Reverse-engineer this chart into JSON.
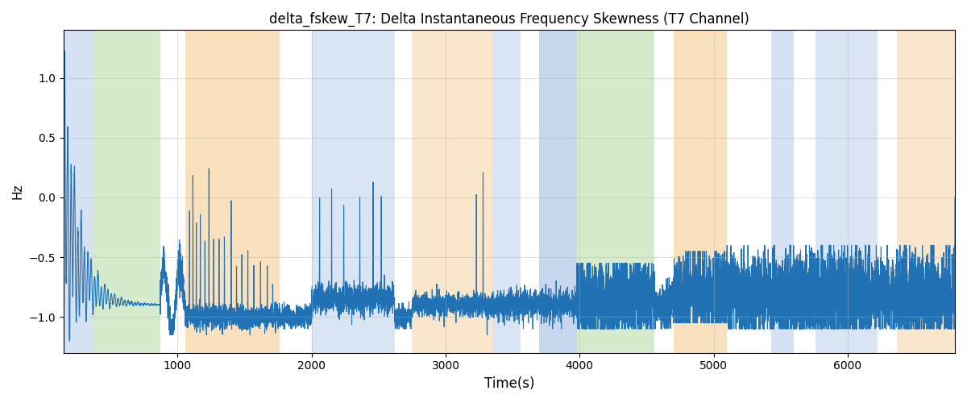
{
  "title": "delta_fskew_T7: Delta Instantaneous Frequency Skewness (T7 Channel)",
  "xlabel": "Time(s)",
  "ylabel": "Hz",
  "xlim": [
    150,
    6800
  ],
  "ylim": [
    -1.3,
    1.4
  ],
  "yticks": [
    -1.0,
    -0.5,
    0.0,
    0.5,
    1.0
  ],
  "line_color": "#2171b5",
  "line_width": 0.8,
  "bg_bands": [
    {
      "xmin": 150,
      "xmax": 370,
      "color": "#aec6e8",
      "alpha": 0.5
    },
    {
      "xmin": 370,
      "xmax": 870,
      "color": "#b5d9a3",
      "alpha": 0.55
    },
    {
      "xmin": 870,
      "xmax": 1060,
      "color": "#ffffff",
      "alpha": 0.0
    },
    {
      "xmin": 1060,
      "xmax": 1760,
      "color": "#f5c98a",
      "alpha": 0.55
    },
    {
      "xmin": 1760,
      "xmax": 2000,
      "color": "#ffffff",
      "alpha": 0.0
    },
    {
      "xmin": 2000,
      "xmax": 2620,
      "color": "#aec6e8",
      "alpha": 0.45
    },
    {
      "xmin": 2620,
      "xmax": 2750,
      "color": "#ffffff",
      "alpha": 0.0
    },
    {
      "xmin": 2750,
      "xmax": 3350,
      "color": "#f5c98a",
      "alpha": 0.45
    },
    {
      "xmin": 3350,
      "xmax": 3560,
      "color": "#aec6e8",
      "alpha": 0.45
    },
    {
      "xmin": 3560,
      "xmax": 3700,
      "color": "#ffffff",
      "alpha": 0.0
    },
    {
      "xmin": 3700,
      "xmax": 3980,
      "color": "#aec6e8",
      "alpha": 0.7
    },
    {
      "xmin": 3980,
      "xmax": 4560,
      "color": "#b5d9a3",
      "alpha": 0.55
    },
    {
      "xmin": 4560,
      "xmax": 4700,
      "color": "#ffffff",
      "alpha": 0.0
    },
    {
      "xmin": 4700,
      "xmax": 5100,
      "color": "#f5c98a",
      "alpha": 0.55
    },
    {
      "xmin": 5100,
      "xmax": 5430,
      "color": "#ffffff",
      "alpha": 0.0
    },
    {
      "xmin": 5430,
      "xmax": 5600,
      "color": "#aec6e8",
      "alpha": 0.5
    },
    {
      "xmin": 5600,
      "xmax": 5760,
      "color": "#ffffff",
      "alpha": 0.0
    },
    {
      "xmin": 5760,
      "xmax": 6220,
      "color": "#aec6e8",
      "alpha": 0.45
    },
    {
      "xmin": 6220,
      "xmax": 6370,
      "color": "#ffffff",
      "alpha": 0.0
    },
    {
      "xmin": 6370,
      "xmax": 6800,
      "color": "#f5c98a",
      "alpha": 0.45
    }
  ],
  "grid_color": "#b0b0b0",
  "grid_alpha": 0.6,
  "figsize": [
    12.0,
    5.0
  ],
  "dpi": 100
}
